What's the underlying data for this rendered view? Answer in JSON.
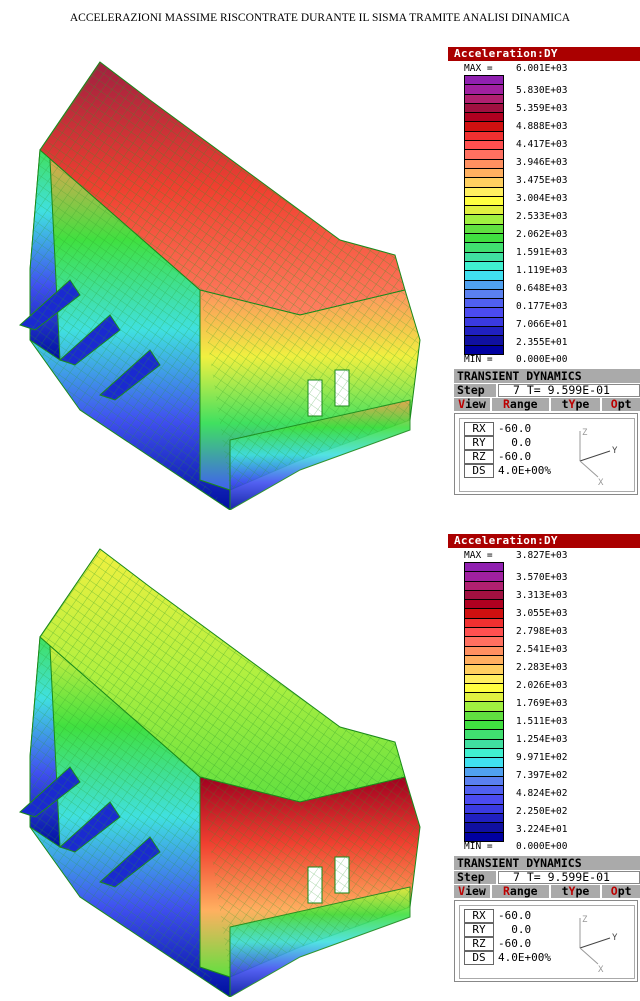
{
  "title": "ACCELERAZIONI MASSIME RISCONTRATE DURANTE IL SISMA TRAMITE ANALISI DINAMICA",
  "panels": [
    {
      "header": "Acceleration:DY",
      "max_label": "MAX =",
      "max_value": "6.001E+03",
      "levels": [
        "5.830E+03",
        "5.359E+03",
        "4.888E+03",
        "4.417E+03",
        "3.946E+03",
        "3.475E+03",
        "3.004E+03",
        "2.533E+03",
        "2.062E+03",
        "1.591E+03",
        "1.119E+03",
        "0.648E+03",
        "0.177E+03",
        "7.066E+01",
        "2.355E+01"
      ],
      "min_label": "MIN =",
      "min_value": "0.000E+00",
      "section_title": "TRANSIENT DYNAMICS",
      "step_label": "Step",
      "step_value": "7 T= 9.599E-01",
      "menu": [
        {
          "hot": "V",
          "rest": "iew"
        },
        {
          "hot": "R",
          "rest": "ange"
        },
        {
          "pre": "t",
          "hot": "Y",
          "rest": "pe"
        },
        {
          "hot": "O",
          "rest": "pt"
        }
      ],
      "view": [
        {
          "key": "RX",
          "value": "-60.0"
        },
        {
          "key": "RY",
          "value": "  0.0"
        },
        {
          "key": "RZ",
          "value": "-60.0"
        },
        {
          "key": "DS",
          "value": "4.0E+00%"
        }
      ],
      "axes": {
        "z": "Z",
        "y": "Y",
        "x": "X"
      }
    },
    {
      "header": "Acceleration:DY",
      "max_label": "MAX =",
      "max_value": "3.827E+03",
      "levels": [
        "3.570E+03",
        "3.313E+03",
        "3.055E+03",
        "2.798E+03",
        "2.541E+03",
        "2.283E+03",
        "2.026E+03",
        "1.769E+03",
        "1.511E+03",
        "1.254E+03",
        "9.971E+02",
        "7.397E+02",
        "4.824E+02",
        "2.250E+02",
        "3.224E+01"
      ],
      "min_label": "MIN =",
      "min_value": "0.000E+00",
      "section_title": "TRANSIENT DYNAMICS",
      "step_label": "Step",
      "step_value": "7 T= 9.599E-01",
      "menu": [
        {
          "hot": "V",
          "rest": "iew"
        },
        {
          "hot": "R",
          "rest": "ange"
        },
        {
          "pre": "t",
          "hot": "Y",
          "rest": "pe"
        },
        {
          "hot": "O",
          "rest": "pt"
        }
      ],
      "view": [
        {
          "key": "RX",
          "value": "-60.0"
        },
        {
          "key": "RY",
          "value": "  0.0"
        },
        {
          "key": "RZ",
          "value": "-60.0"
        },
        {
          "key": "DS",
          "value": "4.0E+00%"
        }
      ],
      "axes": {
        "z": "Z",
        "y": "Y",
        "x": "X"
      }
    }
  ],
  "colors": {
    "header_bg": "#aa0000",
    "scale": [
      "#9020b0",
      "#a020a0",
      "#b02070",
      "#a01040",
      "#b00020",
      "#d01010",
      "#f03030",
      "#ff5050",
      "#ff7060",
      "#ff9060",
      "#ffb060",
      "#ffd060",
      "#fff060",
      "#ffff40",
      "#e0f040",
      "#a0f040",
      "#60e040",
      "#40e040",
      "#40e070",
      "#40e0a0",
      "#40f0d0",
      "#40e0f0",
      "#50a0f0",
      "#5a80f0",
      "#5060f0",
      "#4b4bf0",
      "#3a3ae0",
      "#2020c0",
      "#1010a0",
      "#0000a0"
    ]
  }
}
